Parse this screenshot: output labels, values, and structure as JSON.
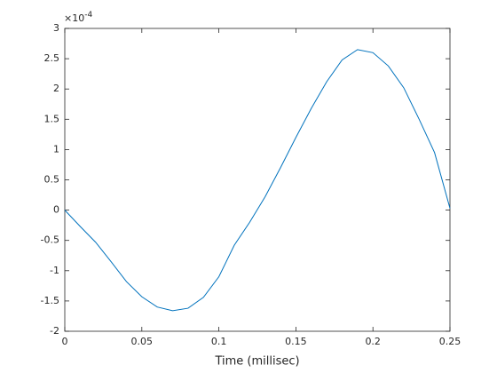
{
  "chart_data": {
    "type": "line",
    "xlabel": "Time (millisec)",
    "y_multiplier": {
      "base": "×10",
      "exponent": "-4"
    },
    "x": [
      0,
      0.01,
      0.02,
      0.03,
      0.04,
      0.05,
      0.06,
      0.07,
      0.08,
      0.09,
      0.1,
      0.11,
      0.12,
      0.13,
      0.14,
      0.15,
      0.16,
      0.17,
      0.18,
      0.19,
      0.2,
      0.21,
      0.22,
      0.23,
      0.24,
      0.25
    ],
    "series": [
      {
        "color": "#0072bd",
        "values": [
          0,
          -0.27,
          -0.53,
          -0.85,
          -1.18,
          -1.43,
          -1.6,
          -1.66,
          -1.62,
          -1.44,
          -1.1,
          -0.58,
          -0.2,
          0.22,
          0.7,
          1.2,
          1.68,
          2.12,
          2.48,
          2.65,
          2.6,
          2.38,
          2.02,
          1.5,
          0.95,
          0.03
        ]
      }
    ],
    "xlim": [
      0,
      0.25
    ],
    "xticks": [
      0,
      0.05,
      0.1,
      0.15,
      0.2,
      0.25
    ],
    "ylim": [
      -2,
      3
    ],
    "yticks": [
      -2,
      -1.5,
      -1,
      -0.5,
      0,
      0.5,
      1,
      1.5,
      2,
      2.5,
      3
    ],
    "grid": false
  }
}
